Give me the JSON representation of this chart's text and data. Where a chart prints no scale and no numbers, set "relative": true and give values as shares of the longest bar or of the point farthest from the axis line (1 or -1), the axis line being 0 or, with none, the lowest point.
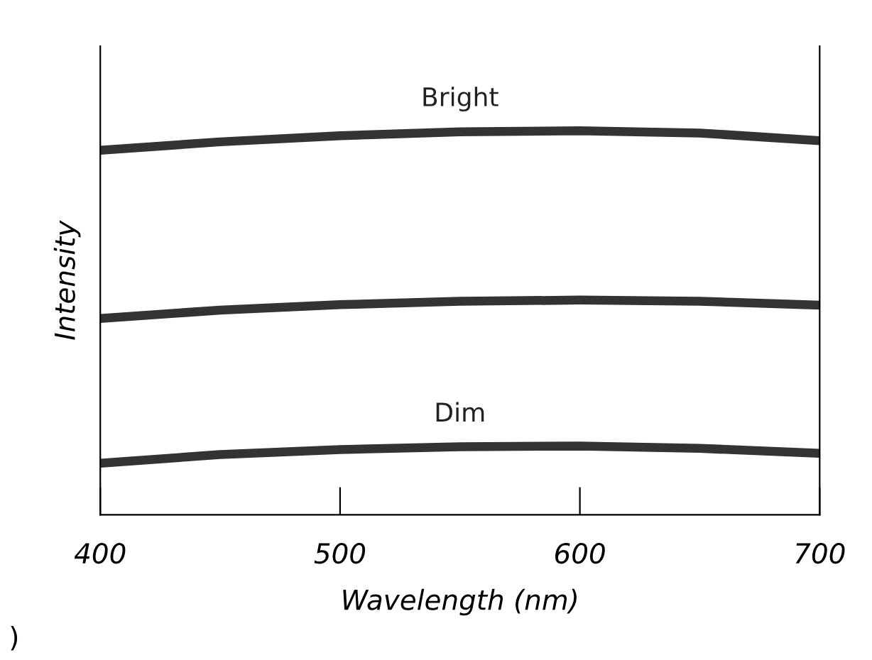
{
  "chart_data": {
    "type": "line",
    "relative": true,
    "xlabel": "Wavelength (nm)",
    "ylabel": "Intensity",
    "x": [
      400,
      450,
      500,
      550,
      600,
      650,
      700
    ],
    "xlim": [
      400,
      700
    ],
    "xticks": [
      400,
      500,
      600,
      700
    ],
    "series": [
      {
        "name": "Bright",
        "color": "#333333",
        "values": [
          0.949,
          0.971,
          0.987,
          0.997,
          1.0,
          0.994,
          0.974
        ]
      },
      {
        "color": "#333333",
        "values": [
          0.511,
          0.533,
          0.547,
          0.556,
          0.559,
          0.556,
          0.546
        ]
      },
      {
        "name": "Dim",
        "color": "#333333",
        "values": [
          0.134,
          0.157,
          0.17,
          0.177,
          0.179,
          0.173,
          0.16
        ]
      }
    ],
    "grid": false,
    "legend": false,
    "line_style": "solid",
    "marker": "none",
    "annotations": [
      ")"
    ]
  }
}
